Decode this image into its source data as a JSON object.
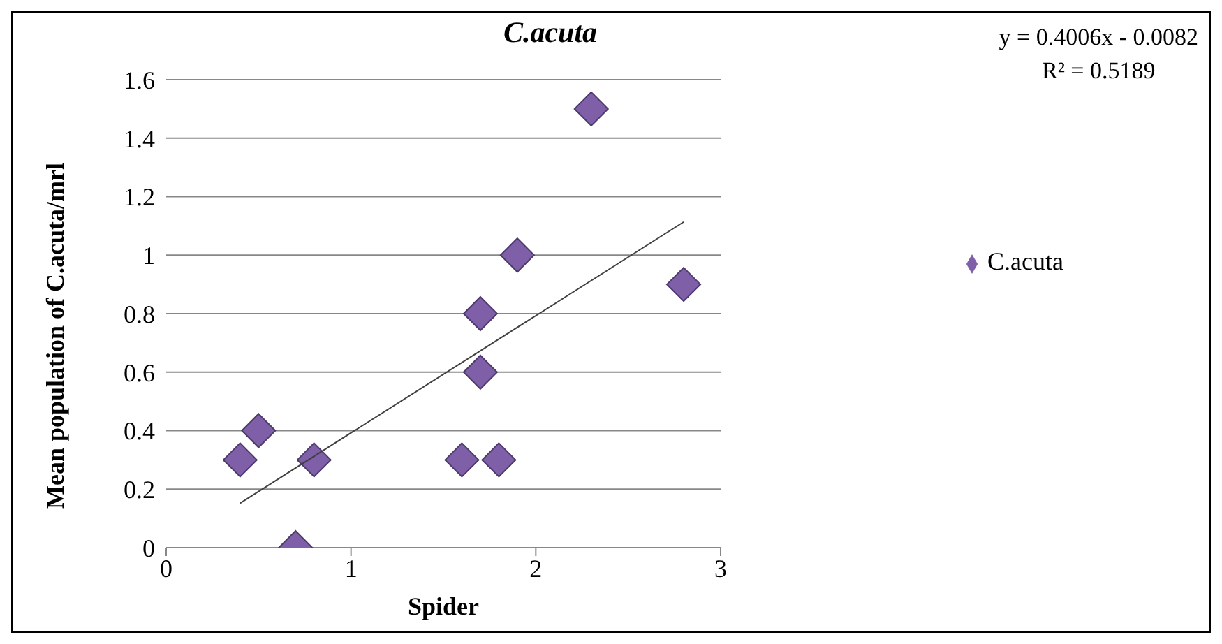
{
  "chart_data": {
    "type": "scatter",
    "title": "C.acuta",
    "xlabel": "Spider",
    "ylabel": "Mean population of C.acuta/mrl",
    "annotations": [
      "y = 0.4006x - 0.0082",
      "R² = 0.5189"
    ],
    "xlim": [
      0,
      3
    ],
    "xticks": [
      0,
      1,
      2,
      3
    ],
    "ylim": [
      0,
      1.6
    ],
    "yticks": [
      0,
      0.2,
      0.4,
      0.6,
      0.8,
      1,
      1.2,
      1.4,
      1.6
    ],
    "grid": "y",
    "legend": "right",
    "marker": "diamond",
    "series": [
      {
        "name": "C.acuta",
        "color": "#7f5fa8",
        "x": [
          0.4,
          0.5,
          0.7,
          0.8,
          1.6,
          1.7,
          1.7,
          1.8,
          1.9,
          2.3,
          2.8
        ],
        "values": [
          0.3,
          0.4,
          0,
          0.3,
          0.3,
          0.8,
          0.6,
          0.3,
          1.0,
          1.5,
          0.9
        ]
      },
      {
        "type": "line",
        "color": "#404040",
        "marker": "none",
        "x": [
          0.4,
          2.8
        ],
        "values": [
          0.152,
          1.1135
        ]
      }
    ]
  }
}
